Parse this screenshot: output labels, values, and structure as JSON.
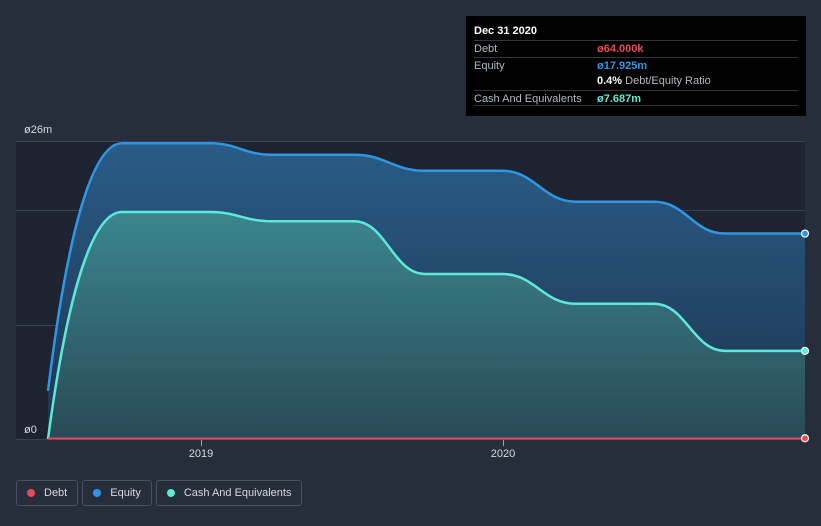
{
  "chart_data": {
    "type": "area",
    "x": [
      "2018-06",
      "2018-09",
      "2018-12",
      "2019-03",
      "2019-06",
      "2019-09",
      "2019-12",
      "2020-03",
      "2020-06",
      "2020-09",
      "2020-12"
    ],
    "series": [
      {
        "name": "Debt",
        "color": "#e64b57",
        "values": [
          0.064,
          0.064,
          0.064,
          0.064,
          0.064,
          0.064,
          0.064,
          0.064,
          0.064,
          0.064,
          0.064
        ]
      },
      {
        "name": "Equity",
        "color": "#2f96e3",
        "values": [
          4.2,
          25.8,
          25.8,
          24.8,
          24.8,
          23.4,
          23.4,
          20.7,
          20.7,
          17.925,
          17.925
        ]
      },
      {
        "name": "Cash And Equivalents",
        "color": "#5de8d7",
        "values": [
          0.0,
          19.8,
          19.8,
          19.0,
          19.0,
          14.4,
          14.4,
          11.8,
          11.8,
          7.687,
          7.687
        ]
      }
    ],
    "y_ticks": [
      "ø26m",
      "ø0"
    ],
    "x_ticks": [
      "2019",
      "2020"
    ],
    "ylim": [
      0,
      26
    ],
    "grid": true,
    "legend_position": "bottom-left"
  },
  "tooltip": {
    "date": "Dec 31 2020",
    "debt_label": "Debt",
    "debt_value": "ø64.000k",
    "equity_label": "Equity",
    "equity_value": "ø17.925m",
    "ratio_value": "0.4%",
    "ratio_label": "Debt/Equity Ratio",
    "cash_label": "Cash And Equivalents",
    "cash_value": "ø7.687m"
  },
  "legend": [
    {
      "label": "Debt",
      "color": "#e64b57"
    },
    {
      "label": "Equity",
      "color": "#2f96e3"
    },
    {
      "label": "Cash And Equivalents",
      "color": "#5de8d7"
    }
  ]
}
